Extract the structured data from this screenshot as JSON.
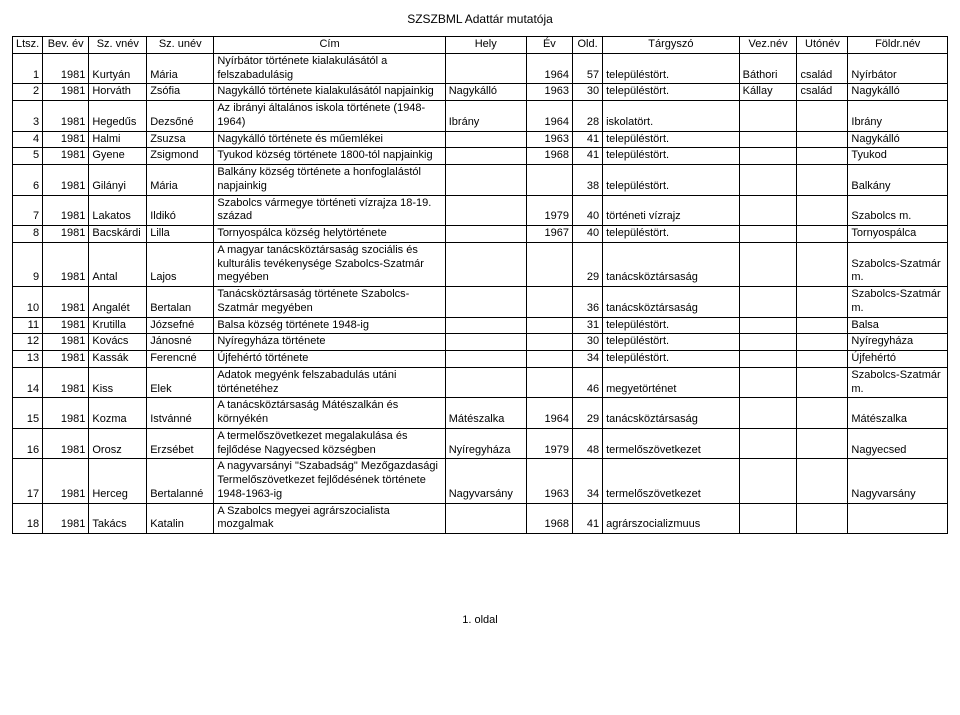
{
  "doc_title": "SZSZBML Adattár mutatója",
  "footer": "1. oldal",
  "headers": {
    "ltsz": "Ltsz.",
    "bevev": "Bev. év",
    "szvnev": "Sz. vnév",
    "szunev": "Sz. unév",
    "cim": "Cím",
    "hely": "Hely",
    "ev": "Év",
    "old": "Old.",
    "targy": "Tárgyszó",
    "veznev": "Vez.név",
    "utonev": "Utónév",
    "foldr": "Földr.név"
  },
  "rows": [
    {
      "ltsz": "1",
      "bevev": "1981",
      "szvnev": "Kurtyán",
      "szunev": "Mária",
      "cim": "Nyírbátor története kialakulásától a felszabadulásig",
      "hely": "",
      "ev": "1964",
      "old": "57",
      "targy": "településtört.",
      "veznev": "Báthori",
      "utonev": "család",
      "foldr": "Nyírbátor"
    },
    {
      "ltsz": "2",
      "bevev": "1981",
      "szvnev": "Horváth",
      "szunev": "Zsófia",
      "cim": "Nagykálló története kialakulásától napjainkig",
      "hely": "Nagykálló",
      "ev": "1963",
      "old": "30",
      "targy": "településtört.",
      "veznev": "Kállay",
      "utonev": "család",
      "foldr": "Nagykálló"
    },
    {
      "ltsz": "3",
      "bevev": "1981",
      "szvnev": "Hegedűs",
      "szunev": "Dezsőné",
      "cim": "Az ibrányi általános iskola története (1948-1964)",
      "hely": "Ibrány",
      "ev": "1964",
      "old": "28",
      "targy": "iskolatört.",
      "veznev": "",
      "utonev": "",
      "foldr": "Ibrány"
    },
    {
      "ltsz": "4",
      "bevev": "1981",
      "szvnev": "Halmi",
      "szunev": "Zsuzsa",
      "cim": "Nagykálló története és műemlékei",
      "hely": "",
      "ev": "1963",
      "old": "41",
      "targy": "településtört.",
      "veznev": "",
      "utonev": "",
      "foldr": "Nagykálló"
    },
    {
      "ltsz": "5",
      "bevev": "1981",
      "szvnev": "Gyene",
      "szunev": "Zsigmond",
      "cim": "Tyukod község története 1800-tól napjainkig",
      "hely": "",
      "ev": "1968",
      "old": "41",
      "targy": "településtört.",
      "veznev": "",
      "utonev": "",
      "foldr": "Tyukod"
    },
    {
      "ltsz": "6",
      "bevev": "1981",
      "szvnev": "Gilányi",
      "szunev": "Mária",
      "cim": "Balkány község története a honfoglalástól napjainkig",
      "hely": "",
      "ev": "",
      "old": "38",
      "targy": "településtört.",
      "veznev": "",
      "utonev": "",
      "foldr": "Balkány"
    },
    {
      "ltsz": "7",
      "bevev": "1981",
      "szvnev": "Lakatos",
      "szunev": "Ildikó",
      "cim": "Szabolcs vármegye történeti vízrajza 18-19. század",
      "hely": "",
      "ev": "1979",
      "old": "40",
      "targy": "történeti vízrajz",
      "veznev": "",
      "utonev": "",
      "foldr": "Szabolcs m."
    },
    {
      "ltsz": "8",
      "bevev": "1981",
      "szvnev": "Bacskárdi",
      "szunev": "Lilla",
      "cim": "Tornyospálca község helytörténete",
      "hely": "",
      "ev": "1967",
      "old": "40",
      "targy": "településtört.",
      "veznev": "",
      "utonev": "",
      "foldr": "Tornyospálca"
    },
    {
      "ltsz": "9",
      "bevev": "1981",
      "szvnev": "Antal",
      "szunev": "Lajos",
      "cim": "A magyar tanácsköztársaság szociális és kulturális tevékenysége Szabolcs-Szatmár megyében",
      "hely": "",
      "ev": "",
      "old": "29",
      "targy": "tanácsköztársaság",
      "veznev": "",
      "utonev": "",
      "foldr": "Szabolcs-Szatmár m."
    },
    {
      "ltsz": "10",
      "bevev": "1981",
      "szvnev": "Angalét",
      "szunev": "Bertalan",
      "cim": "Tanácsköztársaság története Szabolcs-Szatmár megyében",
      "hely": "",
      "ev": "",
      "old": "36",
      "targy": "tanácsköztársaság",
      "veznev": "",
      "utonev": "",
      "foldr": "Szabolcs-Szatmár m."
    },
    {
      "ltsz": "11",
      "bevev": "1981",
      "szvnev": "Krutilla",
      "szunev": "Józsefné",
      "cim": "Balsa község története 1948-ig",
      "hely": "",
      "ev": "",
      "old": "31",
      "targy": "településtört.",
      "veznev": "",
      "utonev": "",
      "foldr": "Balsa"
    },
    {
      "ltsz": "12",
      "bevev": "1981",
      "szvnev": "Kovács",
      "szunev": "Jánosné",
      "cim": "Nyíregyháza története",
      "hely": "",
      "ev": "",
      "old": "30",
      "targy": "településtört.",
      "veznev": "",
      "utonev": "",
      "foldr": "Nyíregyháza"
    },
    {
      "ltsz": "13",
      "bevev": "1981",
      "szvnev": "Kassák",
      "szunev": "Ferencné",
      "cim": "Újfehértó története",
      "hely": "",
      "ev": "",
      "old": "34",
      "targy": "településtört.",
      "veznev": "",
      "utonev": "",
      "foldr": "Újfehértó"
    },
    {
      "ltsz": "14",
      "bevev": "1981",
      "szvnev": "Kiss",
      "szunev": "Elek",
      "cim": "Adatok megyénk felszabadulás utáni történetéhez",
      "hely": "",
      "ev": "",
      "old": "46",
      "targy": "megyetörténet",
      "veznev": "",
      "utonev": "",
      "foldr": "Szabolcs-Szatmár m."
    },
    {
      "ltsz": "15",
      "bevev": "1981",
      "szvnev": "Kozma",
      "szunev": "Istvánné",
      "cim": "A tanácsköztársaság Mátészalkán és környékén",
      "hely": "Mátészalka",
      "ev": "1964",
      "old": "29",
      "targy": "tanácsköztársaság",
      "veznev": "",
      "utonev": "",
      "foldr": "Mátészalka"
    },
    {
      "ltsz": "16",
      "bevev": "1981",
      "szvnev": "Orosz",
      "szunev": "Erzsébet",
      "cim": "A termelőszövetkezet megalakulása és fejlődése Nagyecsed községben",
      "hely": "Nyíregyháza",
      "ev": "1979",
      "old": "48",
      "targy": "termelőszövetkezet",
      "veznev": "",
      "utonev": "",
      "foldr": "Nagyecsed"
    },
    {
      "ltsz": "17",
      "bevev": "1981",
      "szvnev": "Herceg",
      "szunev": "Bertalanné",
      "cim": "A nagyvarsányi \"Szabadság\" Mezőgazdasági Termelőszövetkezet fejlődésének története 1948-1963-ig",
      "hely": "Nagyvarsány",
      "ev": "1963",
      "old": "34",
      "targy": "termelőszövetkezet",
      "veznev": "",
      "utonev": "",
      "foldr": "Nagyvarsány"
    },
    {
      "ltsz": "18",
      "bevev": "1981",
      "szvnev": "Takács",
      "szunev": "Katalin",
      "cim": "A Szabolcs megyei agrárszocialista mozgalmak",
      "hely": "",
      "ev": "1968",
      "old": "41",
      "targy": "agrárszocializmuus",
      "veznev": "",
      "utonev": "",
      "foldr": ""
    }
  ]
}
